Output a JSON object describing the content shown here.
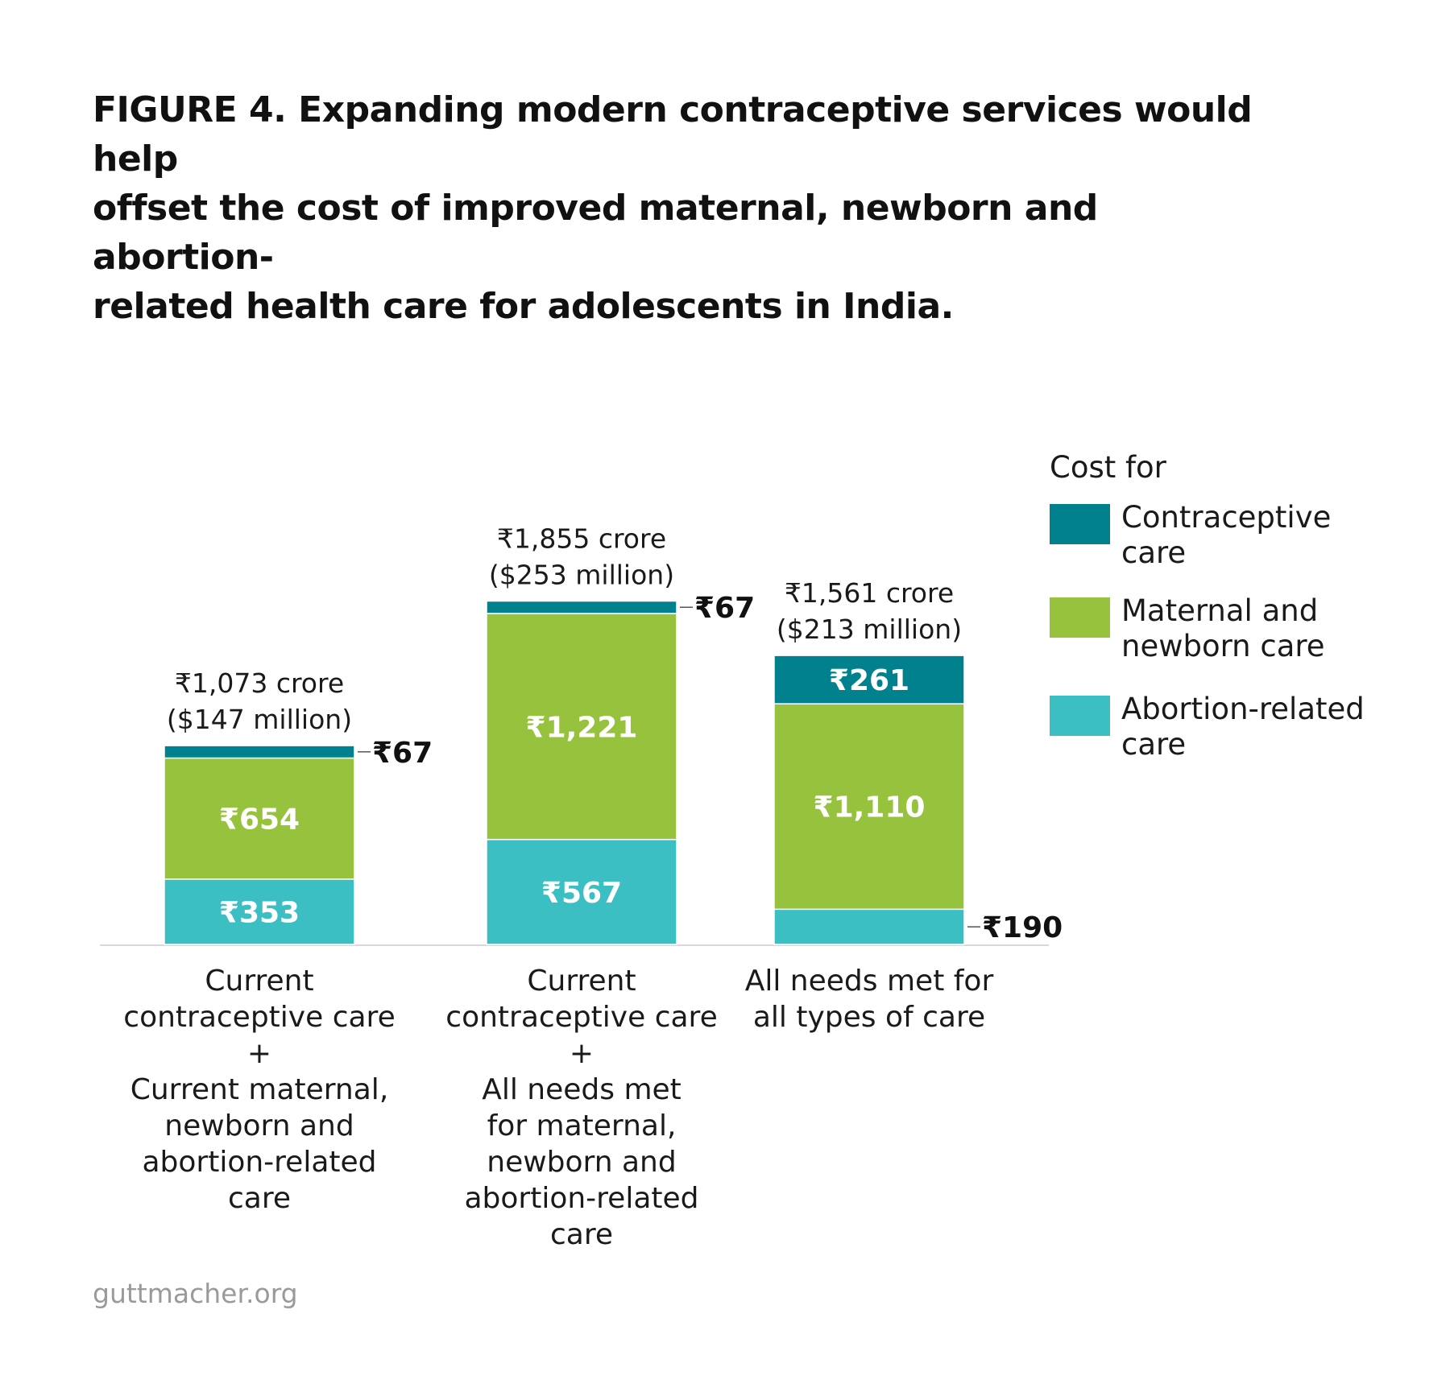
{
  "title_lines": [
    "FIGURE 4. Expanding modern contraceptive services would help",
    "offset the cost of improved maternal, newborn and abortion-",
    "related health care for adolescents in India."
  ],
  "source": "guttmacher.org",
  "colors": {
    "contraceptive": "#00818D",
    "maternal": "#97C23D",
    "abortion": "#3CBFC3",
    "baseline": "#d9d9d9"
  },
  "chart_data": {
    "type": "bar",
    "stacked": true,
    "categories": [
      [
        "Current",
        "contraceptive care",
        "+",
        "Current maternal,",
        "newborn and",
        "abortion-related",
        "care"
      ],
      [
        "Current",
        "contraceptive care",
        "+",
        "All needs met",
        "for maternal,",
        "newborn and",
        "abortion-related",
        "care"
      ],
      [
        "All needs met for",
        "all types of care"
      ]
    ],
    "series": [
      {
        "name": "Abortion-related care",
        "legend_lines": [
          "Abortion-related",
          "care"
        ],
        "values": [
          353,
          567,
          190
        ],
        "value_labels": [
          "₹353",
          "₹567",
          "₹190"
        ],
        "color": "#3CBFC3"
      },
      {
        "name": "Maternal and newborn care",
        "legend_lines": [
          "Maternal and",
          "newborn care"
        ],
        "values": [
          654,
          1221,
          1110
        ],
        "value_labels": [
          "₹654",
          "₹1,221",
          "₹1,110"
        ],
        "color": "#97C23D"
      },
      {
        "name": "Contraceptive care",
        "legend_lines": [
          "Contraceptive",
          "care"
        ],
        "values": [
          67,
          67,
          261
        ],
        "value_labels": [
          "₹67",
          "₹67",
          "₹261"
        ],
        "color": "#00818D"
      }
    ],
    "totals": [
      [
        "₹1,073 crore",
        "($147 million)"
      ],
      [
        "₹1,855 crore",
        "($253 million)"
      ],
      [
        "₹1,561 crore",
        "($213 million)"
      ]
    ],
    "legend_title": "Cost for",
    "legend_position": "right",
    "ylim": [
      0,
      1855
    ],
    "grid": false
  }
}
